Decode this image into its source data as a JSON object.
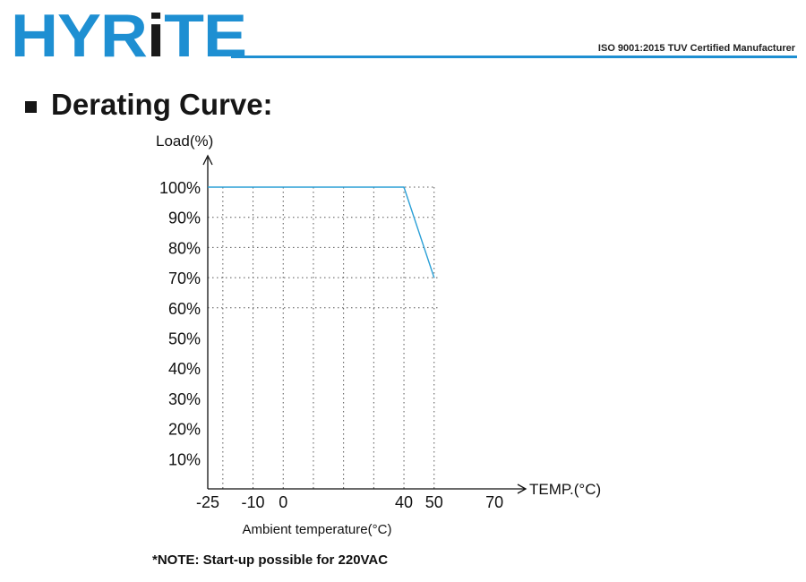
{
  "brand": {
    "logo_part1": "HYR",
    "logo_part2": "i",
    "logo_part3": "TE",
    "certification": "ISO 9001:2015 TUV Certified Manufacturer",
    "accent_color": "#1e8fd2"
  },
  "section": {
    "title": "Derating Curve:"
  },
  "note": "*NOTE: Start-up possible for 220VAC",
  "chart_data": {
    "type": "line",
    "title": "",
    "xlabel": "Ambient temperature(°C)",
    "ylabel": "Load(%)",
    "x_axis_arrow_label": "TEMP.(°C)",
    "xlim": [
      -25,
      75
    ],
    "ylim": [
      0,
      100
    ],
    "x_ticks": [
      -25,
      -10,
      0,
      40,
      50,
      70
    ],
    "y_ticks": [
      10,
      20,
      30,
      40,
      50,
      60,
      70,
      80,
      90,
      100
    ],
    "y_tick_labels": [
      "10%",
      "20%",
      "30%",
      "40%",
      "50%",
      "60%",
      "70%",
      "80%",
      "90%",
      "100%"
    ],
    "grid_x": [
      -20,
      -10,
      0,
      10,
      20,
      30,
      40,
      50
    ],
    "grid": true,
    "series": [
      {
        "name": "",
        "color": "#2a9fd6",
        "x": [
          -25,
          40,
          50
        ],
        "y": [
          100,
          100,
          70
        ]
      }
    ]
  }
}
